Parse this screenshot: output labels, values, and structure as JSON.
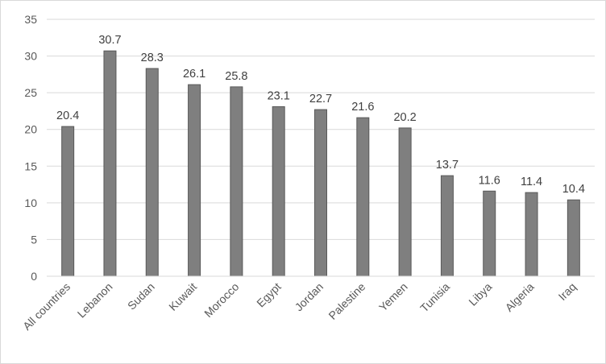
{
  "chart_data": {
    "type": "bar",
    "title": "",
    "xlabel": "",
    "ylabel": "",
    "categories": [
      "All countries",
      "Lebanon",
      "Sudan",
      "Kuwait",
      "Morocco",
      "Egypt",
      "Jordan",
      "Palestine",
      "Yemen",
      "Tunisia",
      "Libya",
      "Algeria",
      "Iraq"
    ],
    "values": [
      20.4,
      30.7,
      28.3,
      26.1,
      25.8,
      23.1,
      22.7,
      21.6,
      20.2,
      13.7,
      11.6,
      11.4,
      10.4
    ],
    "data_labels": [
      "20.4",
      "30.7",
      "28.3",
      "26.1",
      "25.8",
      "23.1",
      "22.7",
      "21.6",
      "20.2",
      "13.7",
      "11.6",
      "11.4",
      "10.4"
    ],
    "ylim": [
      0,
      35
    ],
    "yticks": [
      "0",
      "5",
      "10",
      "15",
      "20",
      "25",
      "30",
      "35"
    ],
    "grid": true,
    "legend": "none",
    "colors": {
      "bar": "#7f7f7f",
      "bar_edge": "#595959",
      "grid": "#d9d9d9"
    }
  }
}
